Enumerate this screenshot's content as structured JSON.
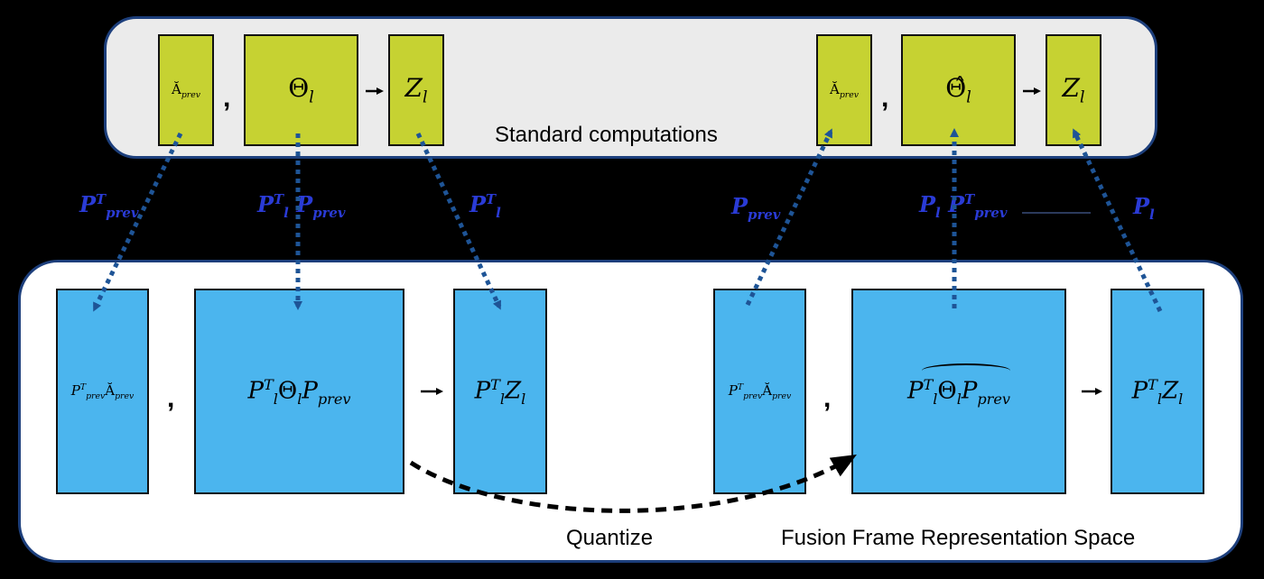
{
  "top_panel": {
    "caption": "Standard computations",
    "left": {
      "a_prev": "Ă",
      "a_prev_sub": "prev",
      "theta": "Θ",
      "theta_sub": "l",
      "z": "Z",
      "z_sub": "l"
    },
    "right": {
      "a_prev": "Ă",
      "a_prev_sub": "prev",
      "theta_hat": "Θ̂",
      "theta_sub": "l",
      "z": "Z",
      "z_sub": "l"
    }
  },
  "bottom_panel": {
    "caption": "Fusion Frame Representation Space",
    "quantize_label": "Quantize",
    "left": {
      "a_p": "P",
      "a_sup": "T",
      "a_sub": "prev",
      "a_body": "Ă",
      "a_body_sub": "prev",
      "theta_p": "P",
      "theta_sup": "T",
      "theta_sub": "l",
      "theta_body": "Θ",
      "theta_body_sub": "l",
      "theta_p2": "P",
      "theta_p2_sub": "prev",
      "z_p": "P",
      "z_sup": "T",
      "z_sub": "l",
      "z_body": "Z",
      "z_body_sub": "l"
    },
    "right": {
      "a_p": "P",
      "a_sup": "T",
      "a_sub": "prev",
      "a_body": "Ă",
      "a_body_sub": "prev",
      "theta_p": "P",
      "theta_sup": "T",
      "theta_sub": "l",
      "theta_body": "Θ",
      "theta_body_sub": "l",
      "theta_p2": "P",
      "theta_p2_sub": "prev",
      "z_p": "P",
      "z_sup": "T",
      "z_sub": "l",
      "z_body": "Z",
      "z_body_sub": "l"
    }
  },
  "projection_labels": {
    "p1_p": "P",
    "p1_sup": "T",
    "p1_sub": "prev",
    "p2_a": "P",
    "p2_a_sup": "T",
    "p2_a_sub": "l",
    "p2_b": "P",
    "p2_b_sub": "prev",
    "p3_p": "P",
    "p3_sup": "T",
    "p3_sub": "l",
    "p4_p": "P",
    "p4_sub": "prev",
    "p5_a": "P",
    "p5_a_sub": "l",
    "p5_b": "P",
    "p5_b_sup": "T",
    "p5_b_sub": "prev",
    "p6_p": "P",
    "p6_sub": "l"
  },
  "colors": {
    "top_box": "#c6d232",
    "bottom_box": "#4bb5ee",
    "projection_arrow": "#1e5496",
    "projection_label": "#2a3bd6"
  }
}
